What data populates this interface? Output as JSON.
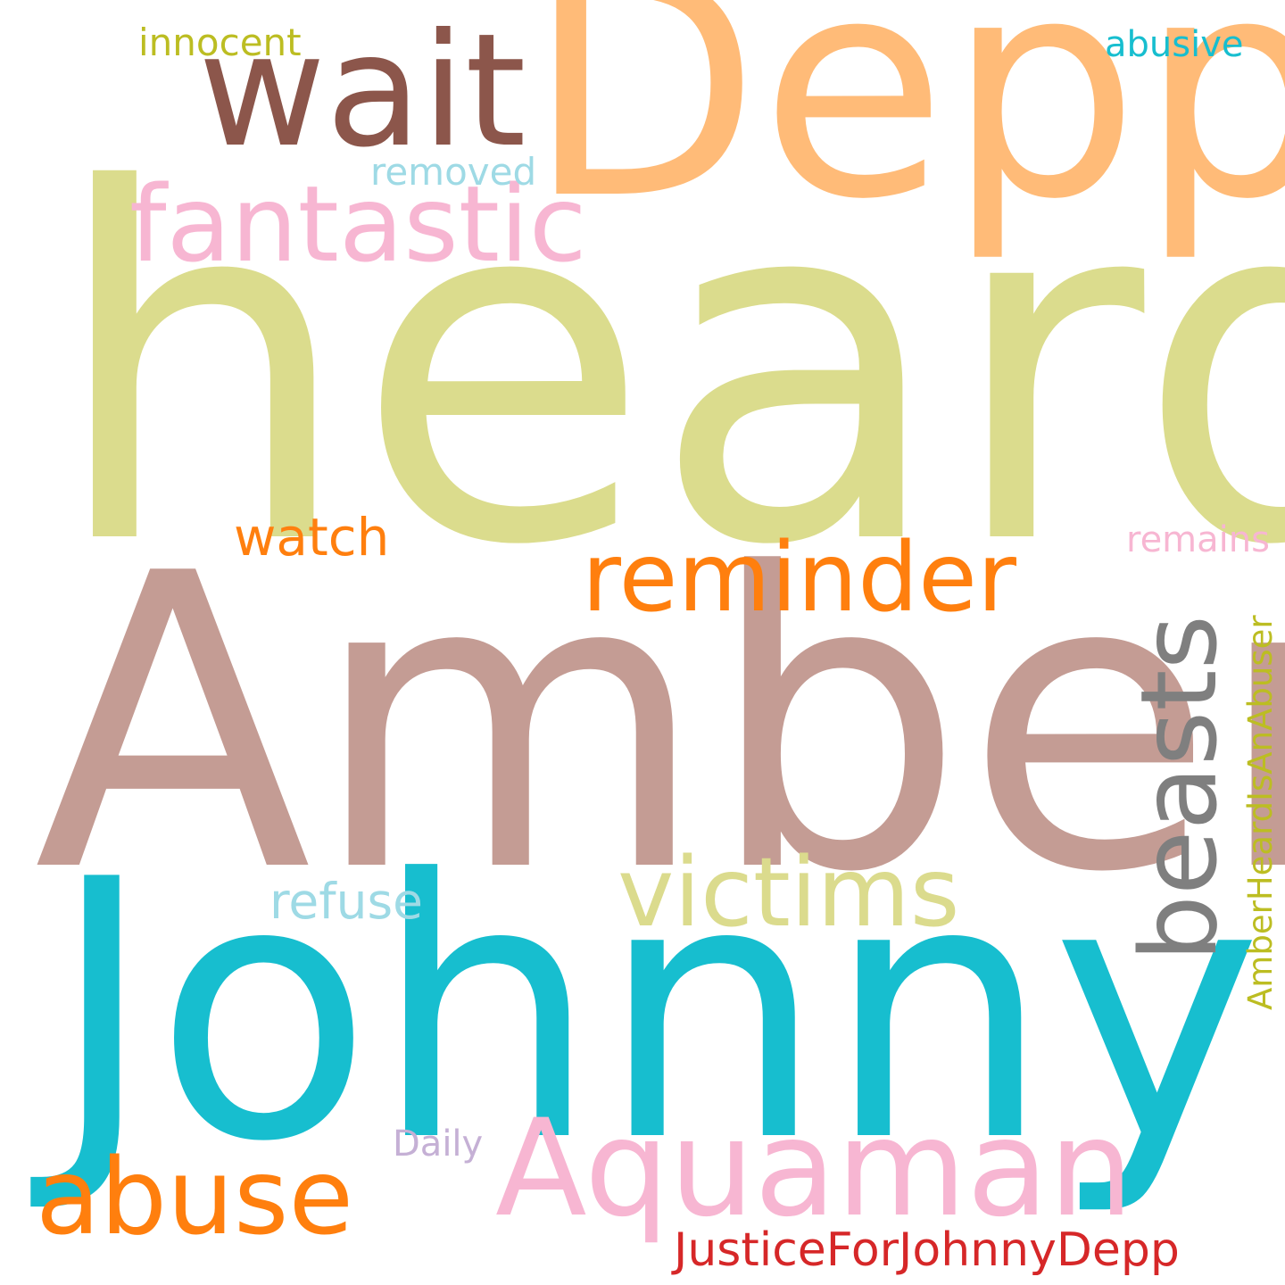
{
  "words": {
    "heard": {
      "text": "heard",
      "color": "#dbdc8d"
    },
    "amber": {
      "text": "Amber",
      "color": "#c49c94"
    },
    "johnny": {
      "text": "Johnny",
      "color": "#17becf"
    },
    "depp": {
      "text": "Depp",
      "color": "#ffbb78"
    },
    "wait": {
      "text": "wait",
      "color": "#8c564b"
    },
    "fantastic": {
      "text": "fantastic",
      "color": "#f7b6d2"
    },
    "reminder": {
      "text": "reminder",
      "color": "#ff7f0e"
    },
    "victims": {
      "text": "victims",
      "color": "#dbdb8d"
    },
    "aquaman": {
      "text": "Aquaman",
      "color": "#f7b6d2"
    },
    "abuse": {
      "text": "abuse",
      "color": "#ff7f0e"
    },
    "watch": {
      "text": "watch",
      "color": "#ff7f0e"
    },
    "refuse": {
      "text": "refuse",
      "color": "#9edae5"
    },
    "removed": {
      "text": "removed",
      "color": "#9edae5"
    },
    "innocent": {
      "text": "innocent",
      "color": "#bcbd22"
    },
    "abusive": {
      "text": "abusive",
      "color": "#17becf"
    },
    "remains": {
      "text": "remains",
      "color": "#f7b6d2"
    },
    "daily": {
      "text": "Daily",
      "color": "#c5b0d5"
    },
    "justice": {
      "text": "JusticeForJohnnyDepp",
      "color": "#d62728"
    },
    "beasts": {
      "text": "beasts",
      "color": "#7f7f7f"
    },
    "ahia": {
      "text": "AmberHeardIsAnAbuser",
      "color": "#bcbd22"
    }
  }
}
